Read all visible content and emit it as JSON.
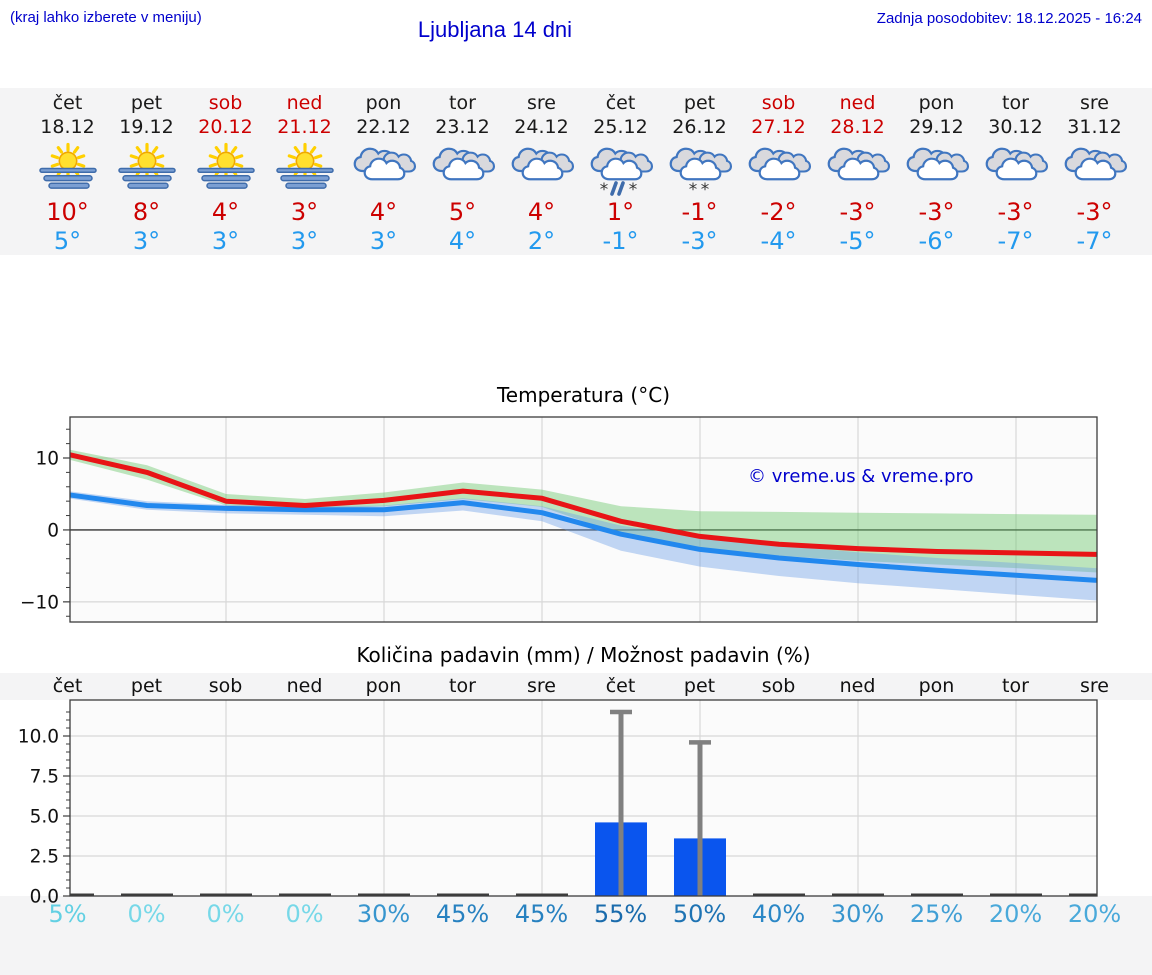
{
  "header": {
    "hint": "(kraj lahko izberete v meniju)",
    "title": "Ljubljana 14 dni",
    "updated": "Zadnja posodobitev: 18.12.2025 - 16:24"
  },
  "watermark": "© vreme.us & vreme.pro",
  "colors": {
    "link_blue": "#0000cc",
    "weekend_red": "#cc0000",
    "max_temp": "#cc0000",
    "min_temp": "#2299ee",
    "temp_line_max": "#e81416",
    "temp_line_min": "#2288ee",
    "band_max": "rgba(110,200,110,0.45)",
    "band_min": "rgba(110,160,230,0.42)",
    "bar_blue": "#0a55ee",
    "whisker_gray": "#808080",
    "grid": "#d8d8d8",
    "axis": "#3c3c3c"
  },
  "forecast_days": [
    {
      "name": "čet",
      "date": "18.12",
      "red": false,
      "icon": "sun-fog",
      "max": "10°",
      "min": "5°"
    },
    {
      "name": "pet",
      "date": "19.12",
      "red": false,
      "icon": "sun-fog",
      "max": "8°",
      "min": "3°"
    },
    {
      "name": "sob",
      "date": "20.12",
      "red": true,
      "icon": "sun-fog",
      "max": "4°",
      "min": "3°"
    },
    {
      "name": "ned",
      "date": "21.12",
      "red": true,
      "icon": "sun-fog",
      "max": "3°",
      "min": "3°"
    },
    {
      "name": "pon",
      "date": "22.12",
      "red": false,
      "icon": "cloudy",
      "max": "4°",
      "min": "3°"
    },
    {
      "name": "tor",
      "date": "23.12",
      "red": false,
      "icon": "cloudy",
      "max": "5°",
      "min": "4°"
    },
    {
      "name": "sre",
      "date": "24.12",
      "red": false,
      "icon": "cloudy",
      "max": "4°",
      "min": "2°"
    },
    {
      "name": "čet",
      "date": "25.12",
      "red": false,
      "icon": "sleet",
      "max": "1°",
      "min": "-1°"
    },
    {
      "name": "pet",
      "date": "26.12",
      "red": false,
      "icon": "snow",
      "max": "-1°",
      "min": "-3°"
    },
    {
      "name": "sob",
      "date": "27.12",
      "red": true,
      "icon": "cloudy",
      "max": "-2°",
      "min": "-4°"
    },
    {
      "name": "ned",
      "date": "28.12",
      "red": true,
      "icon": "cloudy",
      "max": "-3°",
      "min": "-5°"
    },
    {
      "name": "pon",
      "date": "29.12",
      "red": false,
      "icon": "cloudy",
      "max": "-3°",
      "min": "-6°"
    },
    {
      "name": "tor",
      "date": "30.12",
      "red": false,
      "icon": "cloudy",
      "max": "-3°",
      "min": "-7°"
    },
    {
      "name": "sre",
      "date": "31.12",
      "red": false,
      "icon": "cloudy",
      "max": "-3°",
      "min": "-7°"
    }
  ],
  "chart_data": [
    {
      "type": "line",
      "title": "Temperatura (°C)",
      "categories": [
        "čet",
        "pet",
        "sob",
        "ned",
        "pon",
        "tor",
        "sre",
        "čet",
        "pet",
        "sob",
        "ned",
        "pon",
        "tor",
        "sre"
      ],
      "ylim": [
        -12.8,
        15.7
      ],
      "yticks": [
        {
          "v": 10,
          "label": "10"
        },
        {
          "v": 0,
          "label": "0"
        },
        {
          "v": -10,
          "label": "−10"
        }
      ],
      "grid": true,
      "series": [
        {
          "name": "max-temp",
          "color": "#e81416",
          "values": [
            10.5,
            8.0,
            4.0,
            3.4,
            4.1,
            5.4,
            4.4,
            1.2,
            -0.9,
            -2.0,
            -2.6,
            -3.0,
            -3.2,
            -3.4
          ]
        },
        {
          "name": "min-temp",
          "color": "#2288ee",
          "values": [
            4.9,
            3.4,
            3.0,
            2.8,
            2.8,
            3.8,
            2.4,
            -0.6,
            -2.7,
            -3.9,
            -4.8,
            -5.6,
            -6.3,
            -7.0
          ]
        }
      ],
      "bands": [
        {
          "name": "max-range",
          "color": "rgba(110,200,110,0.45)",
          "hi": [
            11.2,
            9.0,
            5.0,
            4.3,
            5.2,
            6.6,
            5.6,
            3.3,
            2.6,
            2.5,
            2.4,
            2.3,
            2.2,
            2.1
          ],
          "lo": [
            9.8,
            7.0,
            3.4,
            2.7,
            3.3,
            4.3,
            3.2,
            -0.6,
            -2.6,
            -3.6,
            -4.3,
            -4.8,
            -5.3,
            -5.9
          ]
        },
        {
          "name": "min-range",
          "color": "rgba(110,160,230,0.42)",
          "hi": [
            5.4,
            4.0,
            3.5,
            3.3,
            3.4,
            4.4,
            3.3,
            0.6,
            -1.1,
            -2.2,
            -3.1,
            -3.9,
            -4.6,
            -5.3
          ],
          "lo": [
            4.4,
            2.8,
            2.3,
            2.1,
            1.9,
            2.7,
            1.2,
            -2.9,
            -5.1,
            -6.4,
            -7.4,
            -8.2,
            -9.0,
            -9.8
          ]
        }
      ]
    },
    {
      "type": "bar",
      "title": "Količina padavin (mm) / Možnost padavin (%)",
      "categories": [
        "čet",
        "pet",
        "sob",
        "ned",
        "pon",
        "tor",
        "sre",
        "čet",
        "pet",
        "sob",
        "ned",
        "pon",
        "tor",
        "sre"
      ],
      "ylim": [
        0,
        12.25
      ],
      "yticks": [
        {
          "v": 0,
          "label": "0.0"
        },
        {
          "v": 2.5,
          "label": "2.5"
        },
        {
          "v": 5,
          "label": "5.0"
        },
        {
          "v": 7.5,
          "label": "7.5"
        },
        {
          "v": 10,
          "label": "10.0"
        }
      ],
      "grid": true,
      "values": [
        0,
        0,
        0,
        0,
        0,
        0,
        0,
        4.6,
        3.6,
        0,
        0,
        0,
        0,
        0
      ],
      "whisker_hi": [
        null,
        null,
        null,
        null,
        null,
        null,
        null,
        11.5,
        9.6,
        null,
        null,
        null,
        null,
        null
      ],
      "bar_color": "#0a55ee",
      "pop_percent": [
        "5%",
        "0%",
        "0%",
        "0%",
        "30%",
        "45%",
        "45%",
        "55%",
        "50%",
        "40%",
        "30%",
        "25%",
        "20%",
        "20%"
      ],
      "pop_colors": [
        "#62d0e3",
        "#77d8e8",
        "#77d8e8",
        "#77d8e8",
        "#3795ce",
        "#2781c0",
        "#2781c0",
        "#1a6bac",
        "#1e73b3",
        "#2b87c6",
        "#3795ce",
        "#419fd5",
        "#4aa9da",
        "#4aa9da"
      ]
    }
  ]
}
